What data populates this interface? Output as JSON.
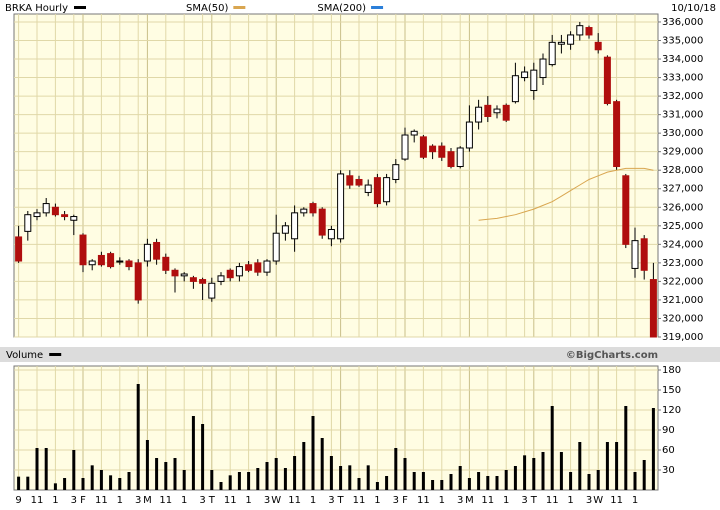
{
  "chart_data": [
    {
      "type": "candlestick",
      "title": "BRKA Hourly",
      "color": "#000000",
      "date": "10/10/18",
      "categories": [
        "9",
        null,
        "11",
        null,
        "1",
        null,
        "3",
        "F",
        null,
        "11",
        null,
        "1",
        null,
        "3",
        "M",
        null,
        "11",
        null,
        "1",
        null,
        "3",
        "T",
        null,
        "11",
        null,
        "1",
        null,
        "3",
        "W",
        null,
        "11",
        null,
        "1",
        null,
        "3",
        "T",
        null,
        "11",
        null,
        "1",
        null,
        "3",
        "F",
        null,
        "11",
        null,
        "1",
        null,
        "3",
        "M",
        null,
        "11",
        null,
        "1",
        null,
        "3",
        "T",
        null,
        "11",
        null,
        "1",
        null,
        "3",
        "W",
        null,
        "11",
        null,
        "1",
        null,
        null
      ],
      "open": [
        324400,
        324700,
        325500,
        325700,
        326000,
        325600,
        325300,
        324500,
        322900,
        323400,
        323500,
        323100,
        323100,
        323000,
        323100,
        324100,
        323300,
        322600,
        322300,
        322200,
        322100,
        321100,
        322000,
        322600,
        322300,
        322900,
        323000,
        322500,
        323100,
        324600,
        324300,
        325700,
        326200,
        325900,
        324300,
        324300,
        327700,
        327500,
        326800,
        327600,
        326300,
        327500,
        328600,
        329900,
        329800,
        329300,
        329300,
        329000,
        328200,
        329200,
        330600,
        331500,
        331100,
        331500,
        331700,
        333000,
        332300,
        333000,
        333700,
        334800,
        334800,
        335300,
        335700,
        334900,
        334100,
        331700,
        327700,
        322700,
        324300,
        322100
      ],
      "high": [
        325000,
        325800,
        325900,
        326500,
        326200,
        325800,
        325600,
        324600,
        323200,
        323600,
        323600,
        323300,
        323200,
        323200,
        324300,
        324300,
        323500,
        322700,
        322500,
        322300,
        322200,
        322200,
        322500,
        322700,
        323000,
        323100,
        323200,
        323200,
        325600,
        325200,
        326100,
        326000,
        326300,
        326000,
        325000,
        328000,
        328000,
        327700,
        327500,
        327800,
        327800,
        328600,
        330300,
        330200,
        329900,
        329400,
        329500,
        329200,
        329300,
        331500,
        331800,
        332000,
        331500,
        331600,
        333800,
        333600,
        333800,
        334300,
        335300,
        335300,
        335500,
        336000,
        335800,
        335400,
        334200,
        331800,
        327800,
        324900,
        324500,
        323000
      ],
      "low": [
        323000,
        324200,
        325300,
        325500,
        325500,
        325300,
        324500,
        322500,
        322600,
        322800,
        322700,
        322900,
        322600,
        320800,
        322800,
        322900,
        322400,
        321400,
        322000,
        321600,
        321000,
        320900,
        321800,
        322000,
        322000,
        322500,
        322300,
        322300,
        322900,
        324200,
        323600,
        325500,
        325500,
        324300,
        323900,
        324100,
        327000,
        327100,
        326600,
        326000,
        326100,
        327300,
        328500,
        329500,
        328600,
        328600,
        328500,
        328100,
        328100,
        329000,
        330200,
        330600,
        330800,
        330600,
        331600,
        332800,
        331800,
        332600,
        333600,
        334300,
        334500,
        335000,
        335100,
        334300,
        331500,
        328000,
        323800,
        322200,
        322100,
        319000
      ],
      "close": [
        323100,
        325600,
        325700,
        326200,
        325600,
        325500,
        325500,
        322900,
        323100,
        322900,
        322800,
        323100,
        322800,
        321000,
        324000,
        323200,
        322600,
        322300,
        322400,
        322000,
        321900,
        321900,
        322300,
        322200,
        322800,
        322600,
        322500,
        323100,
        324600,
        325000,
        325700,
        325900,
        325700,
        324500,
        324800,
        327800,
        327200,
        327200,
        327200,
        326200,
        327600,
        328300,
        329900,
        330100,
        328700,
        329000,
        328700,
        328200,
        329200,
        330600,
        331400,
        330900,
        331300,
        330700,
        333100,
        333300,
        333400,
        334000,
        334900,
        334900,
        335300,
        335800,
        335300,
        334500,
        331600,
        328200,
        324000,
        324200,
        322600,
        319000
      ],
      "up_color": "#ffffff",
      "down_color": "#b00e0e",
      "series": [
        {
          "name": "SMA(50)",
          "color": "#d9a650",
          "values": [
            null,
            null,
            null,
            null,
            null,
            null,
            null,
            null,
            null,
            null,
            null,
            null,
            null,
            null,
            null,
            null,
            null,
            null,
            null,
            null,
            null,
            null,
            null,
            null,
            null,
            null,
            null,
            null,
            null,
            null,
            null,
            null,
            null,
            null,
            null,
            null,
            null,
            null,
            null,
            null,
            null,
            null,
            null,
            null,
            null,
            null,
            null,
            null,
            null,
            null,
            325300,
            325350,
            325400,
            325500,
            325600,
            325750,
            325900,
            326100,
            326300,
            326600,
            326900,
            327200,
            327500,
            327700,
            327900,
            328000,
            328100,
            328100,
            328100,
            328000
          ]
        },
        {
          "name": "SMA(200)",
          "color": "#2b7fd9",
          "values": [
            null,
            null,
            null,
            null,
            null,
            null,
            null,
            null,
            null,
            null,
            null,
            null,
            null,
            null,
            null,
            null,
            null,
            null,
            null,
            null,
            null,
            null,
            null,
            null,
            null,
            null,
            null,
            null,
            null,
            null,
            null,
            null,
            null,
            null,
            null,
            null,
            null,
            null,
            null,
            null,
            null,
            null,
            null,
            null,
            null,
            null,
            null,
            null,
            null,
            null,
            null,
            null,
            null,
            null,
            null,
            null,
            null,
            null,
            null,
            null,
            null,
            null,
            null,
            null,
            null,
            null,
            null,
            null,
            null,
            null
          ]
        }
      ],
      "ylim": [
        319000,
        336430
      ],
      "yticks": [
        {
          "value": 319000,
          "label": "319,000"
        },
        {
          "value": 320000,
          "label": "320,000"
        },
        {
          "value": 321000,
          "label": "321,000"
        },
        {
          "value": 322000,
          "label": "322,000"
        },
        {
          "value": 323000,
          "label": "323,000"
        },
        {
          "value": 324000,
          "label": "324,000"
        },
        {
          "value": 325000,
          "label": "325,000"
        },
        {
          "value": 326000,
          "label": "326,000"
        },
        {
          "value": 327000,
          "label": "327,000"
        },
        {
          "value": 328000,
          "label": "328,000"
        },
        {
          "value": 329000,
          "label": "329,000"
        },
        {
          "value": 330000,
          "label": "330,000"
        },
        {
          "value": 331000,
          "label": "331,000"
        },
        {
          "value": 332000,
          "label": "332,000"
        },
        {
          "value": 333000,
          "label": "333,000"
        },
        {
          "value": 334000,
          "label": "334,000"
        },
        {
          "value": 335000,
          "label": "335,000"
        },
        {
          "value": 336000,
          "label": "336,000"
        }
      ],
      "grid": true
    },
    {
      "type": "bar",
      "title": "Volume",
      "credit": "©BigCharts.com",
      "color": "#000000",
      "values": [
        20,
        20,
        63,
        63,
        10,
        18,
        60,
        18,
        37,
        30,
        22,
        18,
        27,
        159,
        75,
        48,
        42,
        48,
        30,
        111,
        99,
        30,
        12,
        22,
        27,
        27,
        33,
        42,
        48,
        33,
        51,
        72,
        111,
        78,
        51,
        36,
        37,
        18,
        37,
        12,
        21,
        63,
        48,
        27,
        27,
        15,
        15,
        24,
        36,
        18,
        27,
        21,
        21,
        30,
        36,
        52,
        48,
        57,
        126,
        57,
        27,
        72,
        24,
        30,
        72,
        72,
        126,
        27,
        45,
        123
      ],
      "ylim": [
        0,
        186
      ],
      "yticks": [
        30,
        60,
        90,
        120,
        150,
        180
      ],
      "grid": true
    }
  ]
}
